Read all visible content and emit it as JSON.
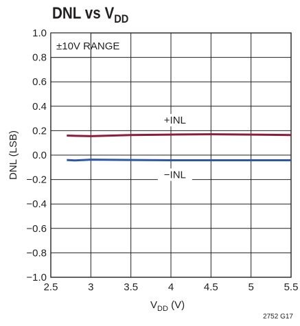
{
  "page_title": "DNL vs V",
  "page_title_sub": "DD",
  "figure_id": "2752 G17",
  "chart_data": {
    "type": "line",
    "title": "DNL vs VDD",
    "xlabel_main": "V",
    "xlabel_sub": "DD",
    "xlabel_unit": " (V)",
    "ylabel": "DNL (LSB)",
    "xlim": [
      2.5,
      5.5
    ],
    "ylim": [
      -1.0,
      1.0
    ],
    "xticks": [
      2.5,
      3,
      3.5,
      4,
      4.5,
      5,
      5.5
    ],
    "xtick_labels": [
      "2.5",
      "3",
      "3.5",
      "4",
      "4.5",
      "5",
      "5.5"
    ],
    "yticks": [
      1.0,
      0.8,
      0.6,
      0.4,
      0.2,
      0.0,
      -0.2,
      -0.4,
      -0.6,
      -0.8,
      -1.0
    ],
    "ytick_labels": [
      "1.0",
      "0.8",
      "0.6",
      "0.4",
      "0.2",
      "0.0",
      "−0.2",
      "−0.4",
      "−0.6",
      "−0.8",
      "−1.0"
    ],
    "grid": true,
    "box_annotation": "±10V RANGE",
    "series": [
      {
        "name": "+INL",
        "color": "#8b1c3a",
        "x": [
          2.7,
          2.8,
          3.0,
          3.5,
          4.0,
          4.5,
          5.0,
          5.5
        ],
        "y": [
          0.16,
          0.158,
          0.155,
          0.164,
          0.168,
          0.171,
          0.168,
          0.164
        ]
      },
      {
        "name": "−INL",
        "color": "#2e56a6",
        "x": [
          2.7,
          2.8,
          3.0,
          3.5,
          4.0,
          4.5,
          5.0,
          5.5
        ],
        "y": [
          -0.04,
          -0.044,
          -0.037,
          -0.04,
          -0.042,
          -0.042,
          -0.042,
          -0.042
        ]
      }
    ]
  }
}
